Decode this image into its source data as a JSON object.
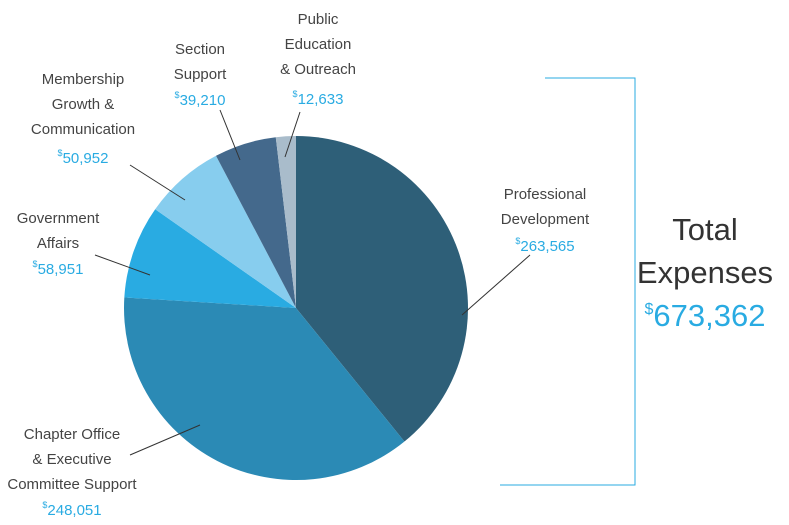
{
  "chart_data": {
    "type": "pie",
    "categories": [
      "Professional\nDevelopment",
      "Chapter Office\n& Executive\nCommittee Support",
      "Government\nAffairs",
      "Membership\nGrowth &\nCommunication",
      "Section\nSupport",
      "Public\nEducation\n& Outreach"
    ],
    "values": [
      263565,
      248051,
      58951,
      50952,
      39210,
      12633
    ],
    "value_labels": [
      "$263,565",
      "$248,051",
      "$58,951",
      "$50,952",
      "$39,210",
      "$12,633"
    ],
    "colors": [
      "#2e5f78",
      "#2b8ab5",
      "#29abe2",
      "#87cdee",
      "#44698c",
      "#a9bccb"
    ],
    "total_label": "Total\nExpenses",
    "total_value": "$673,362"
  }
}
